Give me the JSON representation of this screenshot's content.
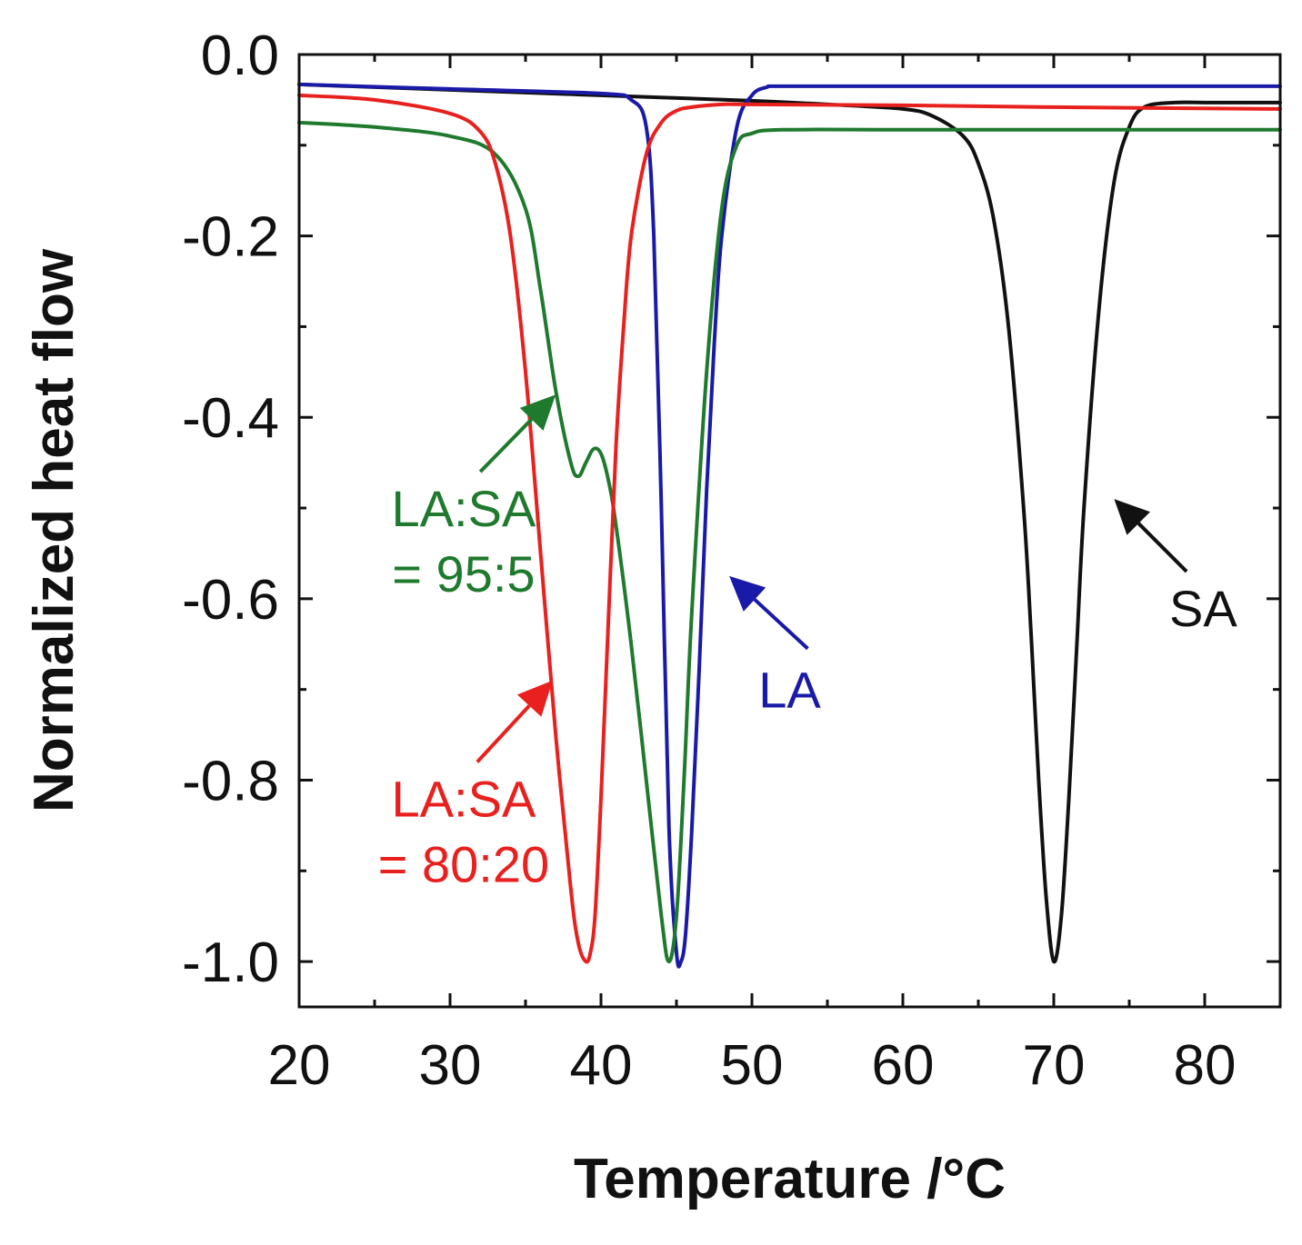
{
  "chart_data": {
    "type": "line",
    "title": "",
    "xlabel": "Temperature /°C",
    "ylabel": "Normalized heat flow",
    "xlim": [
      20,
      85
    ],
    "ylim": [
      -1.05,
      0.0
    ],
    "xticks": [
      20,
      30,
      40,
      50,
      60,
      70,
      80
    ],
    "xtick_labels": [
      "20",
      "30",
      "40",
      "50",
      "60",
      "70",
      "80"
    ],
    "yticks": [
      0.0,
      -0.2,
      -0.4,
      -0.6,
      -0.8,
      -1.0
    ],
    "ytick_labels": [
      "0.0",
      "-0.2",
      "-0.4",
      "-0.6",
      "-0.8",
      "-1.0"
    ],
    "grid": false,
    "series": [
      {
        "name": "SA",
        "color": "#111111",
        "x": [
          20,
          30,
          40,
          50,
          55,
          60,
          62,
          64,
          65,
          66,
          67,
          68,
          68.5,
          69,
          69.5,
          70,
          70.5,
          71,
          71.5,
          72,
          73,
          74,
          75,
          76,
          78,
          80,
          85
        ],
        "y": [
          -0.033,
          -0.039,
          -0.045,
          -0.051,
          -0.055,
          -0.06,
          -0.068,
          -0.09,
          -0.12,
          -0.18,
          -0.3,
          -0.5,
          -0.64,
          -0.8,
          -0.93,
          -1.0,
          -0.95,
          -0.82,
          -0.66,
          -0.5,
          -0.28,
          -0.14,
          -0.08,
          -0.058,
          -0.053,
          -0.053,
          -0.053
        ]
      },
      {
        "name": "LA",
        "color": "#1a1aa8",
        "x": [
          20,
          30,
          40,
          42,
          43,
          43.5,
          44,
          44.5,
          45,
          45.3,
          45.6,
          46,
          46.5,
          47,
          47.5,
          48,
          49,
          50,
          51,
          52,
          60,
          70,
          85
        ],
        "y": [
          -0.033,
          -0.038,
          -0.043,
          -0.05,
          -0.08,
          -0.2,
          -0.5,
          -0.85,
          -0.99,
          -1.0,
          -0.97,
          -0.86,
          -0.68,
          -0.48,
          -0.32,
          -0.2,
          -0.08,
          -0.045,
          -0.036,
          -0.035,
          -0.035,
          -0.035,
          -0.035
        ]
      },
      {
        "name": "LA:SA = 95:5",
        "color": "#1f7a2e",
        "x": [
          20,
          25,
          30,
          33,
          35,
          36,
          37,
          38,
          38.5,
          39,
          39.5,
          40,
          40.5,
          41,
          42,
          43,
          44,
          44.5,
          45,
          45.5,
          46,
          47,
          48,
          49,
          50,
          52,
          60,
          70,
          85
        ],
        "y": [
          -0.075,
          -0.08,
          -0.09,
          -0.11,
          -0.17,
          -0.26,
          -0.37,
          -0.45,
          -0.465,
          -0.45,
          -0.435,
          -0.44,
          -0.47,
          -0.52,
          -0.65,
          -0.8,
          -0.95,
          -1.0,
          -0.95,
          -0.8,
          -0.62,
          -0.35,
          -0.17,
          -0.1,
          -0.087,
          -0.083,
          -0.083,
          -0.083,
          -0.083
        ]
      },
      {
        "name": "LA:SA = 80:20",
        "color": "#e8201e",
        "x": [
          20,
          25,
          30,
          32,
          33,
          34,
          35,
          36,
          37,
          38,
          38.5,
          39,
          39.3,
          39.6,
          40,
          40.5,
          41,
          41.5,
          42,
          43,
          44,
          45,
          46,
          48,
          50,
          60,
          70,
          85
        ],
        "y": [
          -0.045,
          -0.05,
          -0.065,
          -0.085,
          -0.12,
          -0.2,
          -0.35,
          -0.55,
          -0.75,
          -0.92,
          -0.98,
          -1.0,
          -0.99,
          -0.95,
          -0.82,
          -0.62,
          -0.43,
          -0.3,
          -0.2,
          -0.11,
          -0.075,
          -0.062,
          -0.058,
          -0.055,
          -0.055,
          -0.056,
          -0.058,
          -0.06
        ]
      }
    ],
    "annotations": [
      {
        "lines": [
          "LA:SA",
          "= 95:5"
        ],
        "color": "#1f7a2e",
        "text_at": [
          30.9,
          -0.52
        ],
        "arrow_from": [
          32,
          -0.46
        ],
        "arrow_to": [
          37,
          -0.375
        ]
      },
      {
        "lines": [
          "LA:SA",
          "= 80:20"
        ],
        "color": "#e8201e",
        "text_at": [
          30.9,
          -0.84
        ],
        "arrow_from": [
          31.8,
          -0.78
        ],
        "arrow_to": [
          36.8,
          -0.69
        ]
      },
      {
        "lines": [
          "LA"
        ],
        "color": "#1a1aa8",
        "text_at": [
          52.5,
          -0.72
        ],
        "arrow_from": [
          53.7,
          -0.655
        ],
        "arrow_to": [
          48.5,
          -0.575
        ]
      },
      {
        "lines": [
          "SA"
        ],
        "color": "#111111",
        "text_at": [
          79.9,
          -0.63
        ],
        "arrow_from": [
          78.8,
          -0.57
        ],
        "arrow_to": [
          74,
          -0.49
        ]
      }
    ]
  }
}
